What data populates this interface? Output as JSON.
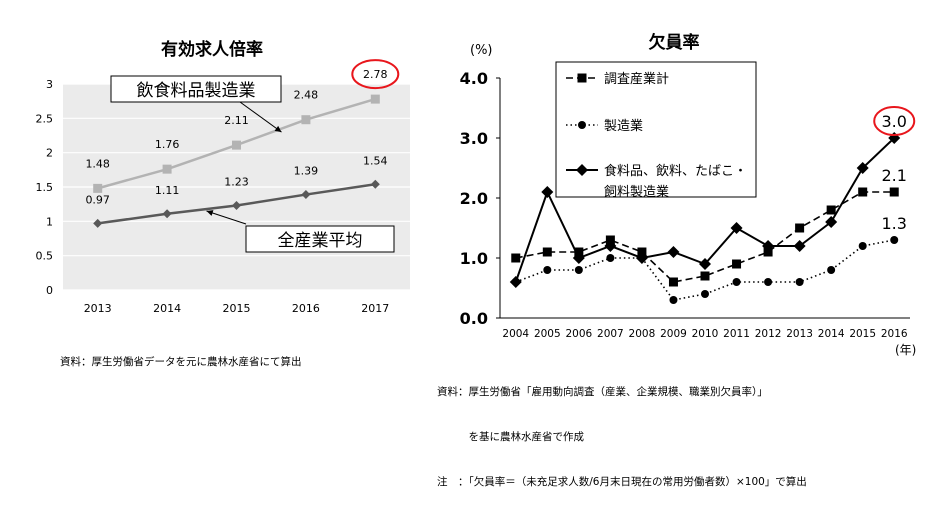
{
  "colors": {
    "food_line": "#b3b3b3",
    "all_line": "#595959",
    "highlight": "#e8161c",
    "plot_bg": "#ebebeb",
    "grid": "#ffffff",
    "black": "#000000"
  },
  "chart_data": [
    {
      "type": "line",
      "title": "有効求人倍率",
      "categories": [
        "2013",
        "2014",
        "2015",
        "2016",
        "2017"
      ],
      "ylim": [
        0,
        3
      ],
      "yticks": [
        "0",
        "0.5",
        "1",
        "1.5",
        "2",
        "2.5",
        "3"
      ],
      "grid": true,
      "series": [
        {
          "name": "飲食料品製造業",
          "values": [
            1.48,
            1.76,
            2.11,
            2.48,
            2.78
          ],
          "labels": [
            "1.48",
            "1.76",
            "2.11",
            "2.48",
            "2.78"
          ],
          "color": "#b3b3b3",
          "marker": "square"
        },
        {
          "name": "全産業平均",
          "values": [
            0.97,
            1.11,
            1.23,
            1.39,
            1.54
          ],
          "labels": [
            "0.97",
            "1.11",
            "1.23",
            "1.39",
            "1.54"
          ],
          "color": "#595959",
          "marker": "diamond"
        }
      ],
      "highlighted_label": "2.78",
      "source": "資料：厚生労働省データを元に農林水産省にて算出"
    },
    {
      "type": "line",
      "title": "欠員率",
      "ylabel": "(%)",
      "xlabel": "(年)",
      "categories": [
        "2004",
        "2005",
        "2006",
        "2007",
        "2008",
        "2009",
        "2010",
        "2011",
        "2012",
        "2013",
        "2014",
        "2015",
        "2016"
      ],
      "ylim": [
        0,
        4
      ],
      "yticks": [
        "0.0",
        "1.0",
        "2.0",
        "3.0",
        "4.0"
      ],
      "grid": false,
      "legend_position": "top-left",
      "series": [
        {
          "name": "調査産業計",
          "values": [
            1.0,
            1.1,
            1.1,
            1.3,
            1.1,
            0.6,
            0.7,
            0.9,
            1.1,
            1.5,
            1.8,
            2.1,
            2.1
          ],
          "style": "dashed",
          "marker": "square"
        },
        {
          "name": "製造業",
          "values": [
            0.6,
            0.8,
            0.8,
            1.0,
            1.0,
            0.3,
            0.4,
            0.6,
            0.6,
            0.6,
            0.8,
            1.2,
            1.3
          ],
          "style": "dotted",
          "marker": "circle"
        },
        {
          "name": "食料品、飲料、たばこ・\n飼料製造業",
          "name_lines": [
            "食料品、飲料、たばこ・",
            "飼料製造業"
          ],
          "values": [
            0.6,
            2.1,
            1.0,
            1.2,
            1.0,
            1.1,
            0.9,
            1.5,
            1.2,
            1.2,
            1.6,
            2.5,
            3.0
          ],
          "style": "solid",
          "marker": "diamond"
        }
      ],
      "end_labels": [
        "3.0",
        "2.1",
        "1.3"
      ],
      "source_lines": [
        "資料：厚生労働省「雇用動向調査（産業、企業規模、職業別欠員率）」",
        "　　　を基に農林水産省で作成",
        "注　：「欠員率＝（未充足求人数/6月末日現在の常用労働者数）×100」で算出"
      ]
    }
  ]
}
